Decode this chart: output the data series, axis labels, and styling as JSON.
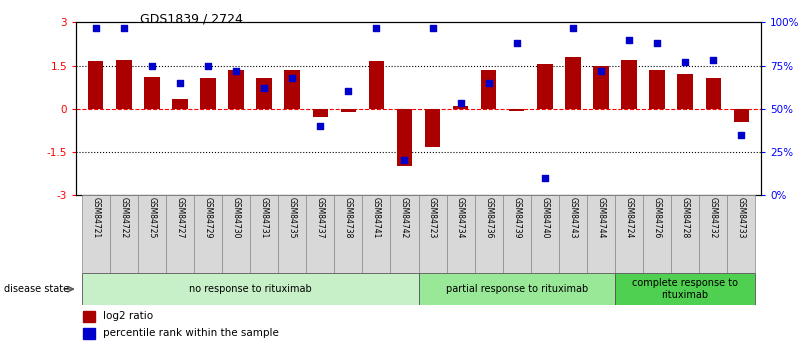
{
  "title": "GDS1839 / 2724",
  "samples": [
    "GSM84721",
    "GSM84722",
    "GSM84725",
    "GSM84727",
    "GSM84729",
    "GSM84730",
    "GSM84731",
    "GSM84735",
    "GSM84737",
    "GSM84738",
    "GSM84741",
    "GSM84742",
    "GSM84723",
    "GSM84734",
    "GSM84736",
    "GSM84739",
    "GSM84740",
    "GSM84743",
    "GSM84744",
    "GSM84724",
    "GSM84726",
    "GSM84728",
    "GSM84732",
    "GSM84733"
  ],
  "log2_ratio": [
    1.65,
    1.7,
    1.1,
    0.35,
    1.05,
    1.35,
    1.05,
    1.35,
    -0.3,
    -0.12,
    1.65,
    -2.0,
    -1.35,
    0.08,
    1.35,
    -0.08,
    1.55,
    1.8,
    1.5,
    1.7,
    1.35,
    1.2,
    1.05,
    -0.45
  ],
  "percentile": [
    97,
    97,
    75,
    65,
    75,
    72,
    62,
    68,
    40,
    60,
    97,
    20,
    97,
    53,
    65,
    88,
    10,
    97,
    72,
    90,
    88,
    77,
    78,
    35
  ],
  "groups": [
    {
      "label": "no response to rituximab",
      "start": 0,
      "end": 12,
      "color": "#c8f0c8"
    },
    {
      "label": "partial response to rituximab",
      "start": 12,
      "end": 19,
      "color": "#98e898"
    },
    {
      "label": "complete response to\nrituximab",
      "start": 19,
      "end": 24,
      "color": "#50d050"
    }
  ],
  "bar_color": "#aa0000",
  "dot_color": "#0000cc",
  "ylim_left": [
    -3,
    3
  ],
  "yticks_left": [
    -3,
    -1.5,
    0,
    1.5,
    3
  ],
  "yticks_right": [
    0,
    25,
    50,
    75,
    100
  ],
  "yticklabels_right": [
    "0%",
    "25%",
    "50%",
    "75%",
    "100%"
  ],
  "bg_color": "#ffffff",
  "label_box_color": "#d8d8d8",
  "legend_items": [
    {
      "label": "log2 ratio",
      "color": "#aa0000"
    },
    {
      "label": "percentile rank within the sample",
      "color": "#0000cc"
    }
  ]
}
